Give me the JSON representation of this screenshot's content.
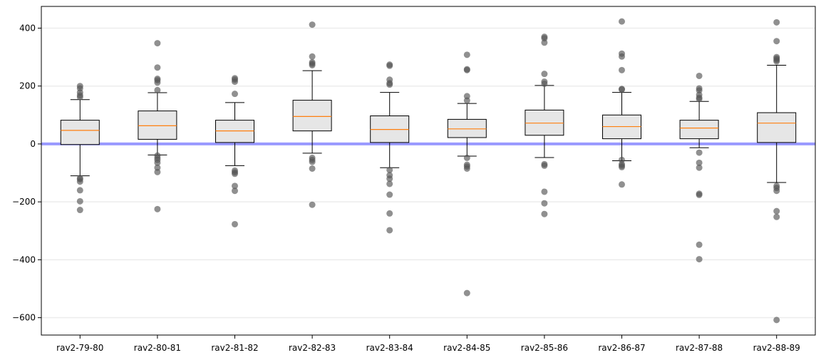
{
  "chart_data": {
    "type": "box",
    "title": "",
    "xlabel": "",
    "ylabel": "",
    "ylim": [
      -660,
      475
    ],
    "yticks": [
      -600,
      -400,
      -200,
      0,
      200,
      400
    ],
    "ytick_labels": [
      "−600",
      "−400",
      "−200",
      "0",
      "200",
      "400"
    ],
    "grid": "horizontal",
    "reference_line": {
      "y": 0,
      "color": "#9999ff"
    },
    "colors": {
      "box_fill": "#e6e6e6",
      "median": "#ff7f0e",
      "outlier": "#555555",
      "grid": "#ececec"
    },
    "categories": [
      "rav2-79-80",
      "rav2-80-81",
      "rav2-81-82",
      "rav2-82-83",
      "rav2-83-84",
      "rav2-84-85",
      "rav2-85-86",
      "rav2-86-87",
      "rav2-87-88",
      "rav2-88-89"
    ],
    "boxes": [
      {
        "whisker_low": -110,
        "q1": -2,
        "median": 47,
        "q3": 82,
        "whisker_high": 153,
        "outliers": [
          200,
          192,
          178,
          168,
          162,
          -118,
          -122,
          -130,
          -160,
          -198,
          -228
        ]
      },
      {
        "whisker_low": -38,
        "q1": 16,
        "median": 63,
        "q3": 114,
        "whisker_high": 177,
        "outliers": [
          348,
          264,
          225,
          220,
          212,
          186,
          -40,
          -48,
          -55,
          -65,
          -82,
          -97,
          -225
        ]
      },
      {
        "whisker_low": -75,
        "q1": 5,
        "median": 45,
        "q3": 82,
        "whisker_high": 143,
        "outliers": [
          227,
          222,
          215,
          173,
          -92,
          -98,
          -103,
          -145,
          -162,
          -277
        ]
      },
      {
        "whisker_low": -32,
        "q1": 45,
        "median": 95,
        "q3": 151,
        "whisker_high": 253,
        "outliers": [
          412,
          302,
          282,
          277,
          272,
          -48,
          -55,
          -62,
          -85,
          -210
        ]
      },
      {
        "whisker_low": -82,
        "q1": 5,
        "median": 50,
        "q3": 97,
        "whisker_high": 178,
        "outliers": [
          274,
          270,
          222,
          210,
          205,
          -90,
          -108,
          -120,
          -138,
          -175,
          -240,
          -298
        ]
      },
      {
        "whisker_low": -42,
        "q1": 22,
        "median": 52,
        "q3": 85,
        "whisker_high": 140,
        "outliers": [
          308,
          258,
          255,
          165,
          150,
          -48,
          -72,
          -78,
          -85,
          -515
        ]
      },
      {
        "whisker_low": -47,
        "q1": 30,
        "median": 72,
        "q3": 117,
        "whisker_high": 202,
        "outliers": [
          370,
          365,
          350,
          242,
          215,
          208,
          -70,
          -75,
          -165,
          -205,
          -242
        ]
      },
      {
        "whisker_low": -58,
        "q1": 18,
        "median": 60,
        "q3": 100,
        "whisker_high": 178,
        "outliers": [
          423,
          312,
          302,
          255,
          190,
          188,
          -55,
          -70,
          -75,
          -80,
          -140
        ]
      },
      {
        "whisker_low": -13,
        "q1": 18,
        "median": 55,
        "q3": 82,
        "whisker_high": 147,
        "outliers": [
          235,
          192,
          185,
          170,
          160,
          155,
          -30,
          -65,
          -82,
          -172,
          -176,
          -348,
          -398
        ]
      },
      {
        "whisker_low": -133,
        "q1": 5,
        "median": 72,
        "q3": 108,
        "whisker_high": 272,
        "outliers": [
          420,
          355,
          300,
          295,
          290,
          285,
          -145,
          -152,
          -162,
          -232,
          -252,
          -608
        ]
      }
    ]
  }
}
